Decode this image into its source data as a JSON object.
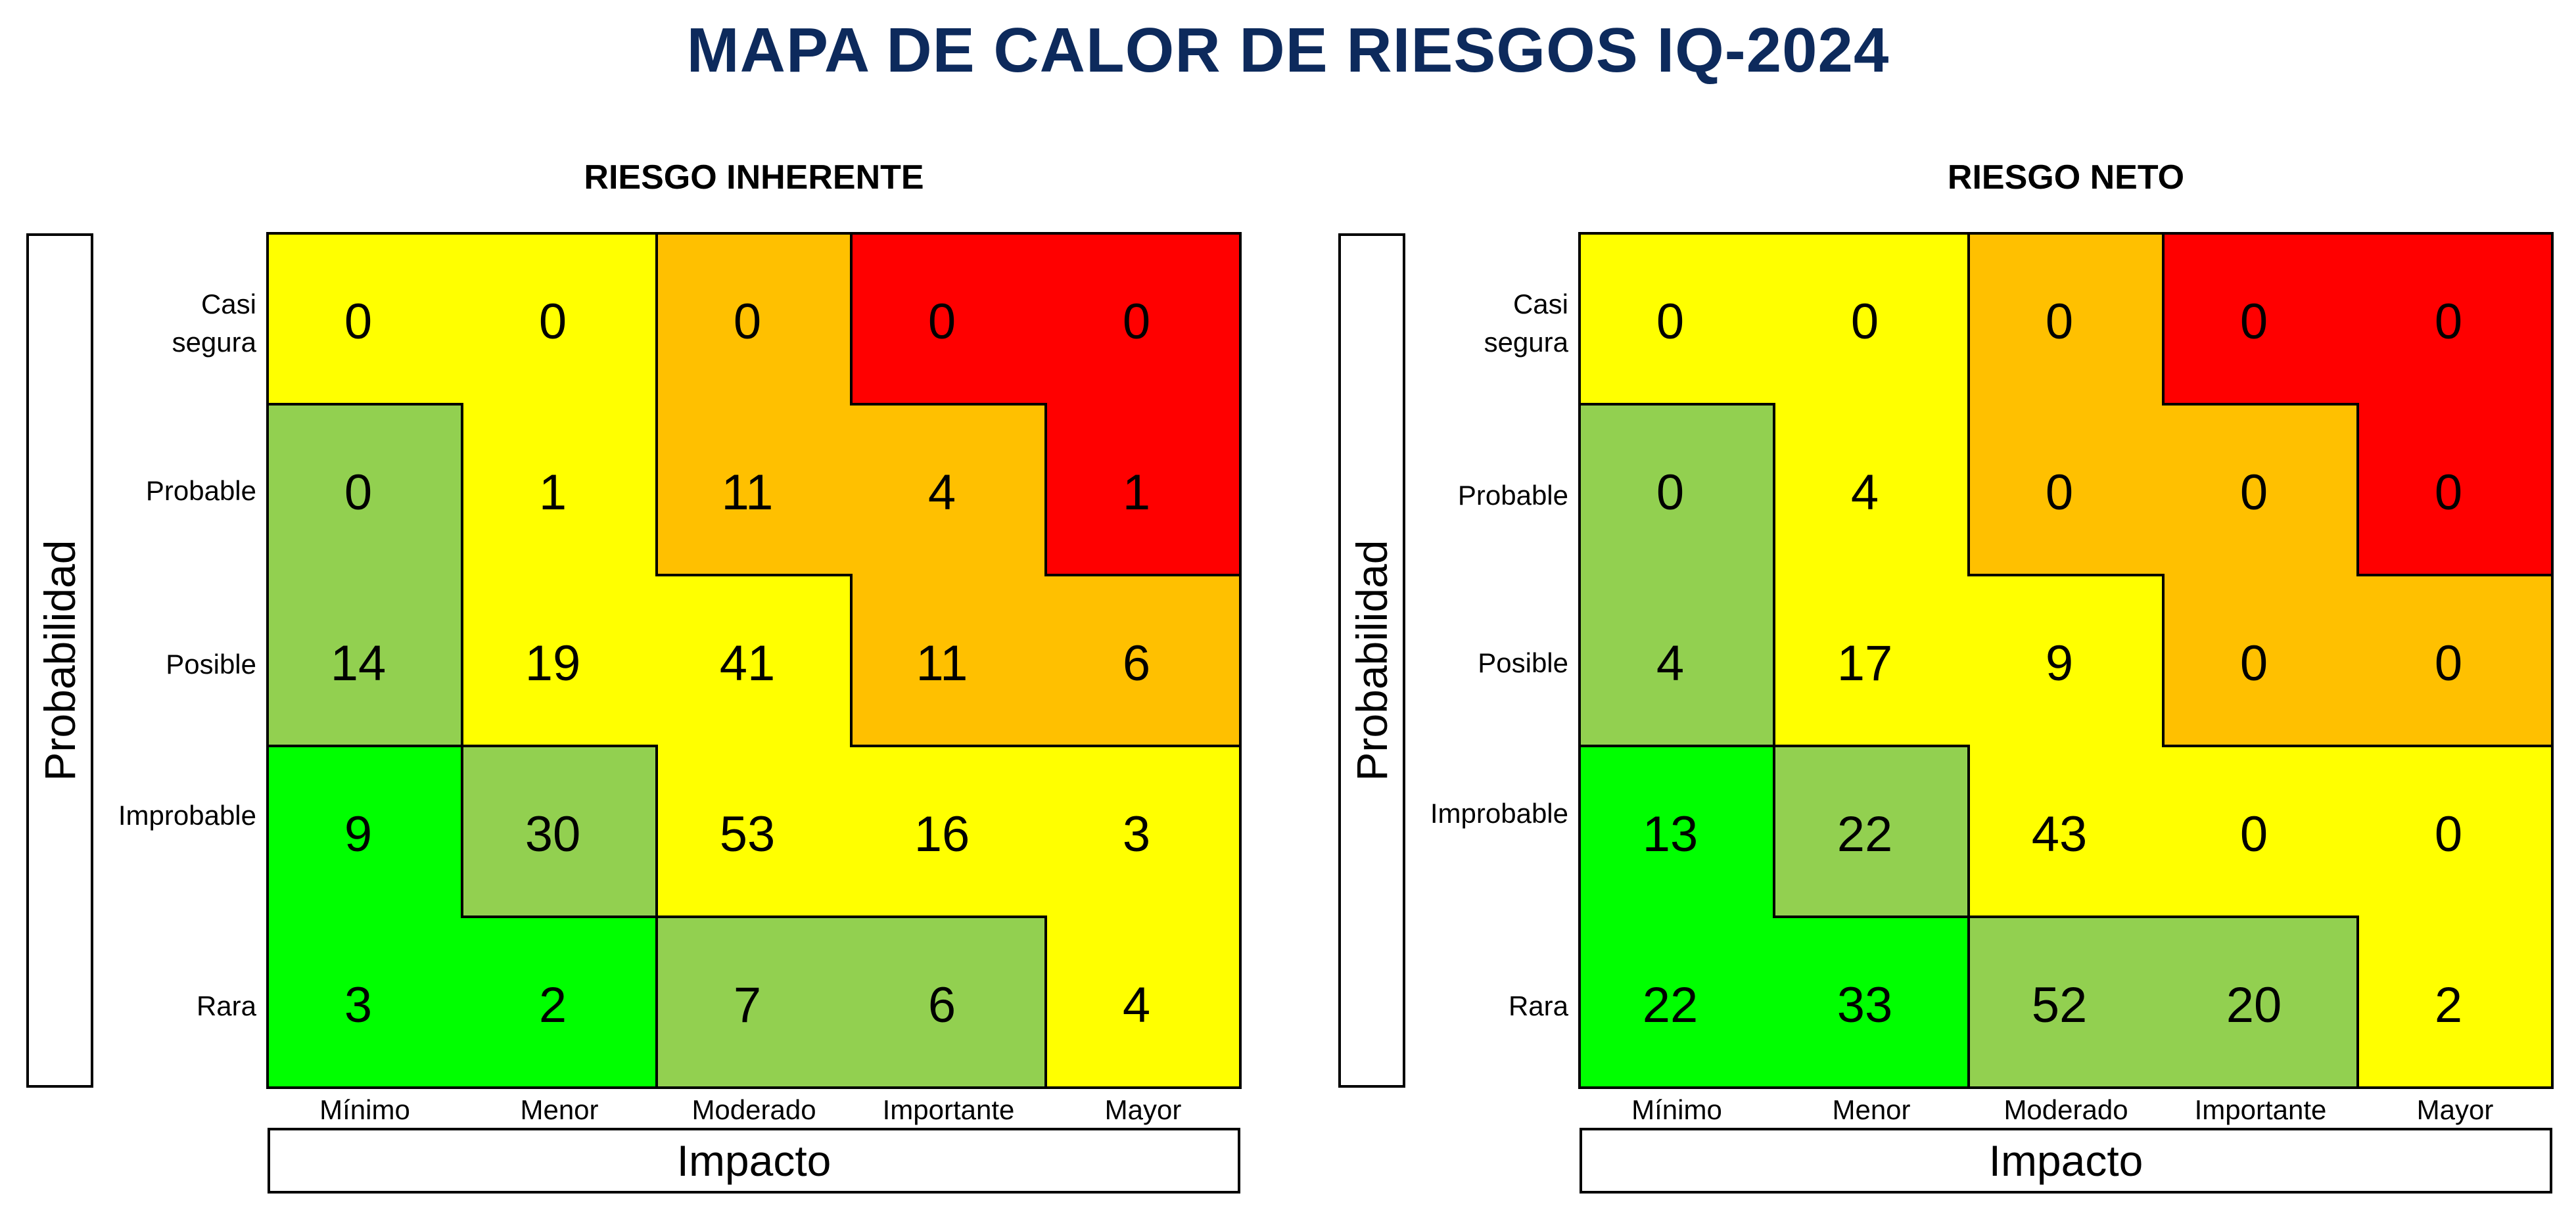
{
  "title": "MAPA DE CALOR DE RIESGOS IQ-2024",
  "colors": {
    "red": "#ff0000",
    "orange": "#ffc000",
    "yellow": "#ffff00",
    "light_green": "#92d050",
    "green": "#00ff00"
  },
  "chart_data": [
    {
      "type": "heatmap",
      "title": "RIESGO INHERENTE",
      "xlabel": "Impacto",
      "ylabel": "Probabilidad",
      "x_categories": [
        "Mínimo",
        "Menor",
        "Moderado",
        "Importante",
        "Mayor"
      ],
      "y_categories": [
        "Casi segura",
        "Probable",
        "Posible",
        "Improbable",
        "Rara"
      ],
      "values": [
        [
          0,
          0,
          0,
          0,
          0
        ],
        [
          0,
          1,
          11,
          4,
          1
        ],
        [
          14,
          19,
          41,
          11,
          6
        ],
        [
          9,
          30,
          53,
          16,
          3
        ],
        [
          3,
          2,
          7,
          6,
          4
        ]
      ],
      "cell_colors": [
        [
          "yellow",
          "yellow",
          "orange",
          "red",
          "red"
        ],
        [
          "light_green",
          "yellow",
          "orange",
          "orange",
          "red"
        ],
        [
          "light_green",
          "yellow",
          "yellow",
          "orange",
          "orange"
        ],
        [
          "green",
          "light_green",
          "yellow",
          "yellow",
          "yellow"
        ],
        [
          "green",
          "green",
          "light_green",
          "light_green",
          "yellow"
        ]
      ]
    },
    {
      "type": "heatmap",
      "title": "RIESGO NETO",
      "xlabel": "Impacto",
      "ylabel": "Probabilidad",
      "x_categories": [
        "Mínimo",
        "Menor",
        "Moderado",
        "Importante",
        "Mayor"
      ],
      "y_categories": [
        "Casi segura",
        "Probable",
        "Posible",
        "Improbable",
        "Rara"
      ],
      "values": [
        [
          0,
          0,
          0,
          0,
          0
        ],
        [
          0,
          4,
          0,
          0,
          0
        ],
        [
          4,
          17,
          9,
          0,
          0
        ],
        [
          13,
          22,
          43,
          0,
          0
        ],
        [
          22,
          33,
          52,
          20,
          2
        ]
      ],
      "cell_colors": [
        [
          "yellow",
          "yellow",
          "orange",
          "red",
          "red"
        ],
        [
          "light_green",
          "yellow",
          "orange",
          "orange",
          "red"
        ],
        [
          "light_green",
          "yellow",
          "yellow",
          "orange",
          "orange"
        ],
        [
          "green",
          "light_green",
          "yellow",
          "yellow",
          "yellow"
        ],
        [
          "green",
          "green",
          "light_green",
          "light_green",
          "yellow"
        ]
      ]
    }
  ]
}
